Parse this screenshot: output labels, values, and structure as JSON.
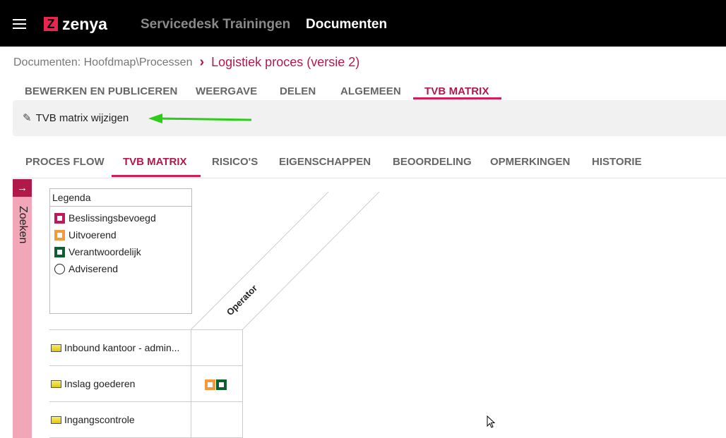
{
  "header": {
    "logo": "zenya",
    "workspace": "Servicedesk Trainingen",
    "section": "Documenten"
  },
  "breadcrumb": {
    "path": "Documenten: Hoofdmap\\Processen",
    "separator": "›",
    "current": "Logistiek proces (versie 2)"
  },
  "top_tabs": [
    "BEWERKEN EN PUBLICEREN",
    "WEERGAVE",
    "DELEN",
    "ALGEMEEN",
    "TVB MATRIX"
  ],
  "top_tabs_active": "TVB MATRIX",
  "toolbar": {
    "edit_label": "TVB matrix wijzigen"
  },
  "doc_tabs": [
    "PROCES FLOW",
    "TVB MATRIX",
    "RISICO'S",
    "EIGENSCHAPPEN",
    "BEOORDELING",
    "OPMERKINGEN",
    "HISTORIE"
  ],
  "doc_tabs_active": "TVB MATRIX",
  "sidebar": {
    "label": "Zoeken"
  },
  "legend": {
    "title": "Legenda",
    "items": [
      {
        "label": "Beslissingsbevoegd",
        "color": "#c0185a"
      },
      {
        "label": "Uitvoerend",
        "color": "#f39a3c"
      },
      {
        "label": "Verantwoordelijk",
        "color": "#0e5e32"
      },
      {
        "label": "Adviserend",
        "color": "circle"
      }
    ]
  },
  "matrix": {
    "columns": [
      "Operator"
    ],
    "rows": [
      {
        "label": "Inbound kantoor - admin...",
        "cells": [
          []
        ]
      },
      {
        "label": "Inslag goederen",
        "cells": [
          [
            "Uitvoerend",
            "Verantwoordelijk"
          ]
        ]
      },
      {
        "label": "Ingangscontrole",
        "cells": [
          []
        ]
      }
    ]
  },
  "colors": {
    "accent": "#b01a4a",
    "header_bg": "#000000",
    "sidebar": "#f2a7b8",
    "arrow": "#2ecc1a"
  }
}
